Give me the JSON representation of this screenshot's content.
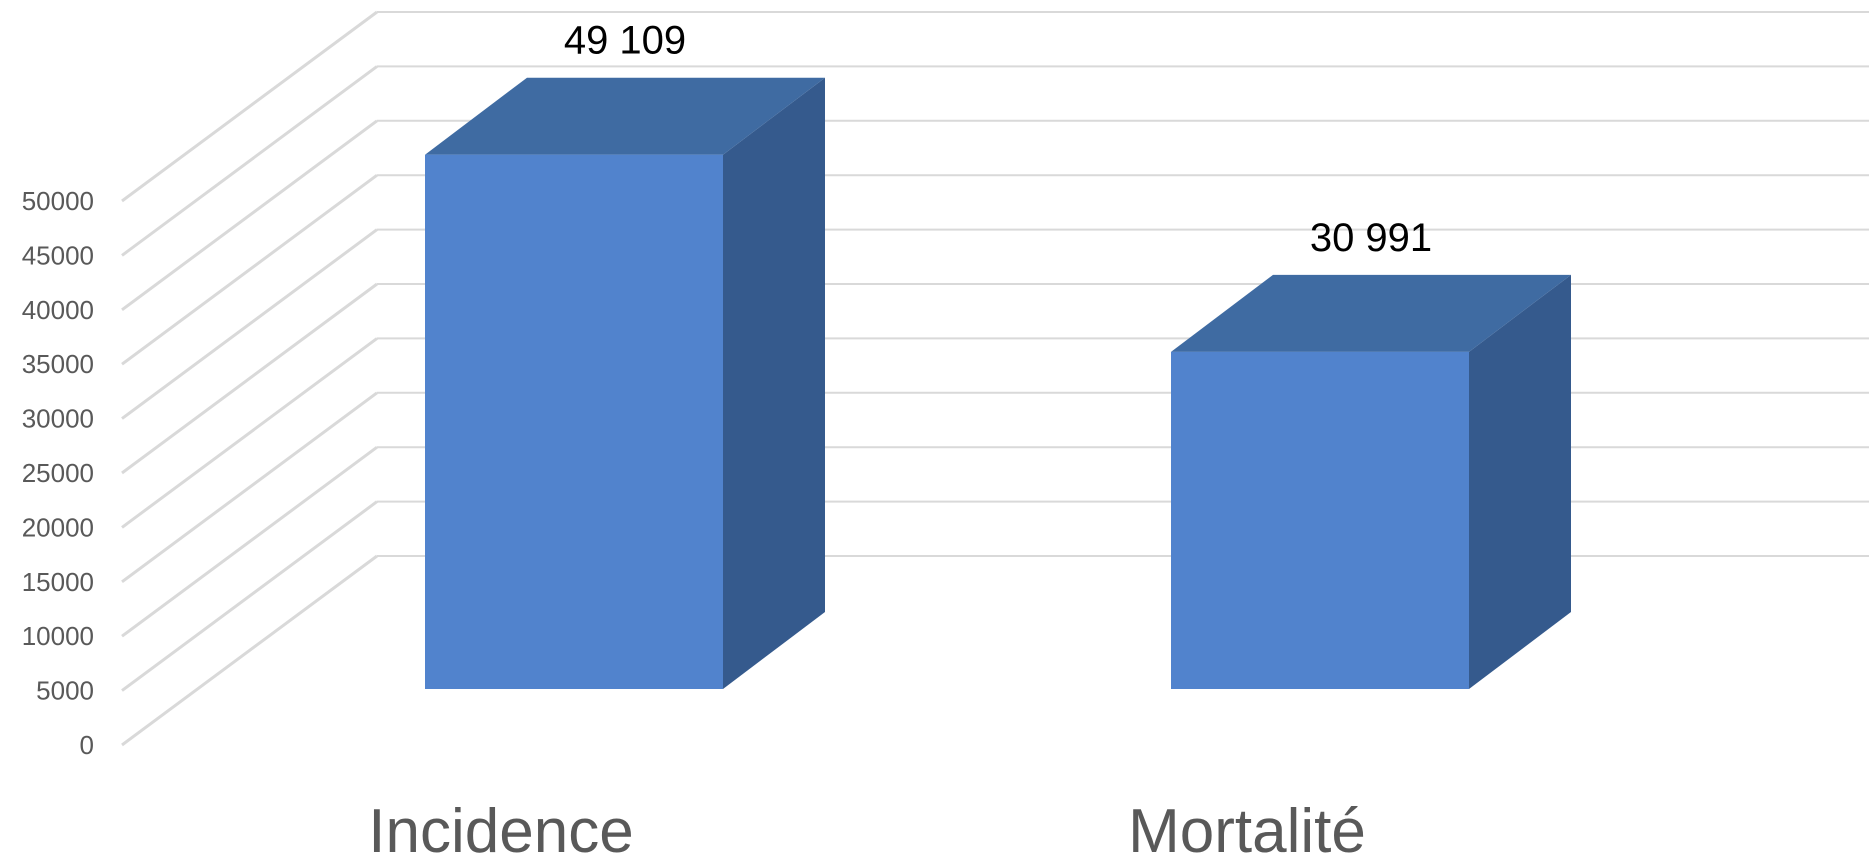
{
  "chart_data": {
    "type": "bar",
    "categories": [
      "Incidence",
      "Mortalité"
    ],
    "values": [
      49109,
      30991
    ],
    "data_labels": [
      "49 109",
      "30 991"
    ],
    "yticks": [
      0,
      5000,
      10000,
      15000,
      20000,
      25000,
      30000,
      35000,
      40000,
      45000,
      50000
    ],
    "ylim": [
      0,
      50000
    ],
    "title": "",
    "xlabel": "",
    "ylabel": "",
    "grid": true,
    "legend": "none",
    "colors": {
      "front": "#5183CD",
      "top": "#3F6BA2",
      "side": "#355A8D",
      "grid": "#D9D9D9"
    }
  }
}
